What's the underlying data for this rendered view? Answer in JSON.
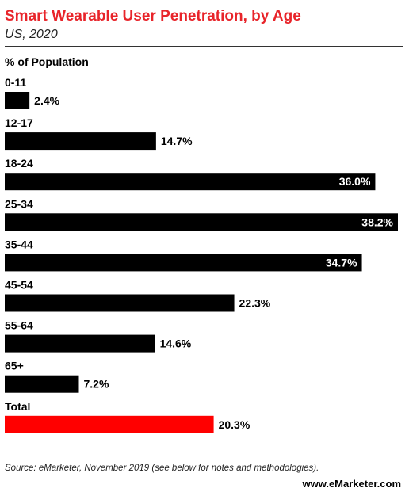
{
  "header": {
    "title": "Smart Wearable User Penetration, by Age",
    "subtitle": "US, 2020"
  },
  "chart_data": {
    "type": "bar",
    "orientation": "horizontal",
    "title": "Smart Wearable User Penetration, by Age",
    "subtitle": "US, 2020",
    "ylabel": "% of Population",
    "categories": [
      "0-11",
      "12-17",
      "18-24",
      "25-34",
      "35-44",
      "45-54",
      "55-64",
      "65+",
      "Total"
    ],
    "values": [
      2.4,
      14.7,
      36.0,
      38.2,
      34.7,
      22.3,
      14.6,
      7.2,
      20.3
    ],
    "labels": [
      "2.4%",
      "14.7%",
      "36.0%",
      "38.2%",
      "34.7%",
      "22.3%",
      "14.6%",
      "7.2%",
      "20.3%"
    ],
    "xlim": [
      0,
      38.2
    ],
    "grid": false,
    "colors": {
      "bar": "#000000",
      "total_bar": "#ff0000",
      "title": "#e8242a"
    }
  },
  "footer": {
    "source": "Source: eMarketer, November 2019 (see below for notes and methodologies).",
    "brand": "www.eMarketer.com"
  }
}
